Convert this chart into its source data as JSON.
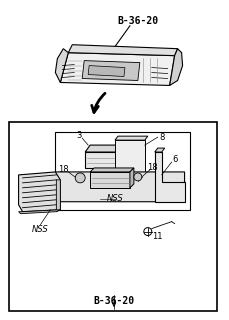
{
  "background_color": "#ffffff",
  "line_color": "#000000",
  "text_color": "#000000",
  "title_top": "B-36-20",
  "title_bottom": "B-36-20",
  "fig_width": 2.29,
  "fig_height": 3.2,
  "dpi": 100,
  "label_fontsize": 6.0,
  "title_fontsize": 7.0
}
